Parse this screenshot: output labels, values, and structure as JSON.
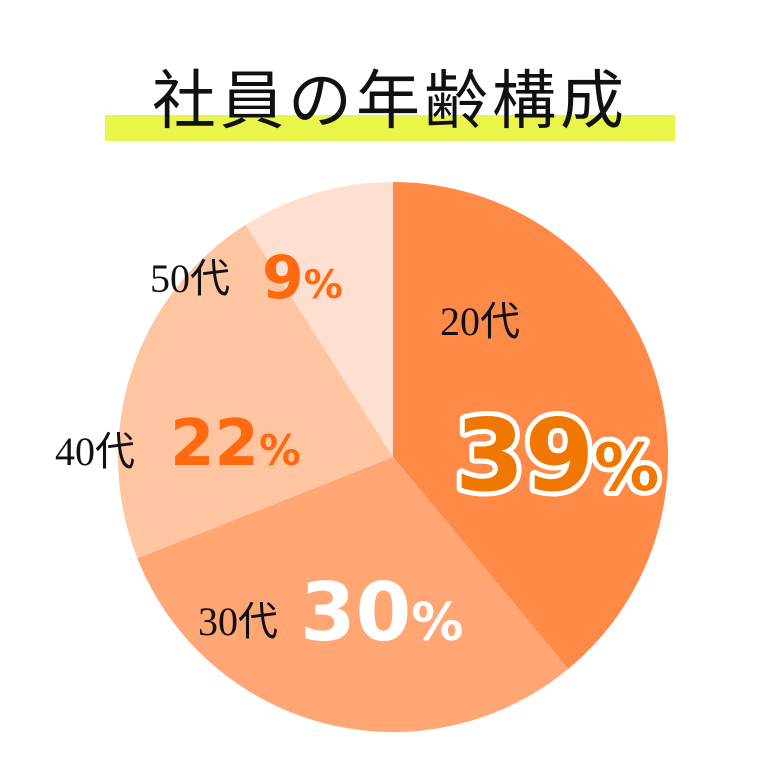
{
  "chart_data": {
    "type": "pie",
    "title": "社員の年齢構成",
    "categories": [
      "20代",
      "30代",
      "40代",
      "50代"
    ],
    "values": [
      39,
      30,
      22,
      9
    ],
    "labels": [
      "39%",
      "30%",
      "22%",
      "9%"
    ],
    "colors": [
      "#FF8A47",
      "#FFA674",
      "#FFC5A1",
      "#FFE0D0"
    ],
    "label_colors": [
      "#F07800",
      "#FFFFFF",
      "#FF6A10",
      "#FF6A10"
    ],
    "accent_color": "#E9F549"
  }
}
